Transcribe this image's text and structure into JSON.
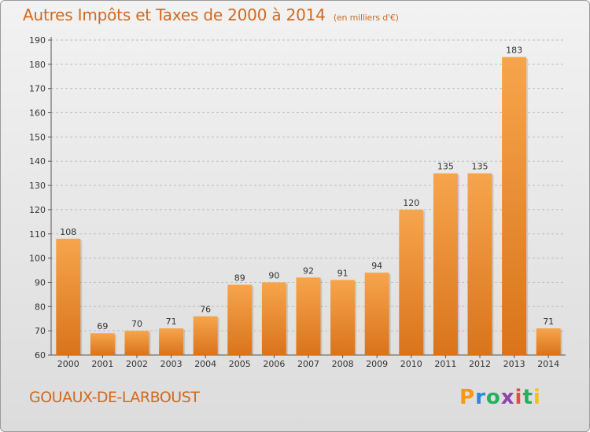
{
  "header": {
    "title": "Autres Impôts et Taxes de 2000 à 2014",
    "subtitle": "(en milliers d'€)"
  },
  "footer": {
    "commune": "GOUAUX-DE-LARBOUST",
    "logo_text": "Proxiti",
    "logo_colors": [
      "#f39c12",
      "#2e86de",
      "#27ae60",
      "#8e44ad",
      "#e74c3c",
      "#27ae60",
      "#f1c40f"
    ]
  },
  "chart_data": {
    "type": "bar",
    "categories": [
      "2000",
      "2001",
      "2002",
      "2003",
      "2004",
      "2005",
      "2006",
      "2007",
      "2008",
      "2009",
      "2010",
      "2011",
      "2012",
      "2013",
      "2014"
    ],
    "values": [
      108,
      69,
      70,
      71,
      76,
      89,
      90,
      92,
      91,
      94,
      120,
      135,
      135,
      183,
      71
    ],
    "ylim": [
      60,
      190
    ],
    "yticks": [
      60,
      70,
      80,
      90,
      100,
      110,
      120,
      130,
      140,
      150,
      160,
      170,
      180,
      190
    ],
    "grid": "horizontal dashed",
    "bar_color_top": "#f6a54d",
    "bar_color_bottom": "#d9741b",
    "xlabel": "",
    "ylabel": ""
  }
}
